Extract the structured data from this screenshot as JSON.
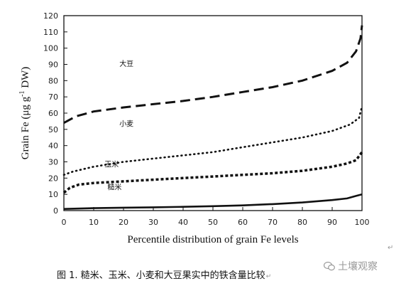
{
  "chart_data": {
    "type": "line",
    "xlabel": "Percentile distribution of grain Fe levels",
    "ylabel_prefix": "Grain Fe (μg g",
    "ylabel_sup": "-1",
    "ylabel_suffix": " DW)",
    "xlim": [
      0,
      100
    ],
    "ylim": [
      0,
      120
    ],
    "xticks": [
      "0",
      "10",
      "20",
      "30",
      "40",
      "50",
      "60",
      "70",
      "80",
      "90",
      "100"
    ],
    "yticks": [
      "0",
      "10",
      "20",
      "30",
      "40",
      "50",
      "60",
      "70",
      "80",
      "90",
      "100",
      "110",
      "120"
    ],
    "grid": false,
    "series": [
      {
        "name": "大豆",
        "style": "long-dash",
        "label_pos": [
          21,
          89
        ],
        "points": [
          [
            0,
            54
          ],
          [
            4,
            58
          ],
          [
            10,
            61
          ],
          [
            20,
            63.5
          ],
          [
            30,
            65.5
          ],
          [
            40,
            67.5
          ],
          [
            50,
            70
          ],
          [
            60,
            73
          ],
          [
            70,
            76
          ],
          [
            80,
            80
          ],
          [
            90,
            86
          ],
          [
            95,
            91
          ],
          [
            98,
            98
          ],
          [
            99.5,
            106
          ],
          [
            100,
            114
          ]
        ]
      },
      {
        "name": "小麦",
        "style": "dotted",
        "label_pos": [
          21,
          52
        ],
        "points": [
          [
            0,
            22
          ],
          [
            3,
            24
          ],
          [
            10,
            27
          ],
          [
            20,
            30
          ],
          [
            30,
            32
          ],
          [
            40,
            34
          ],
          [
            50,
            36
          ],
          [
            60,
            39
          ],
          [
            70,
            42
          ],
          [
            80,
            45
          ],
          [
            90,
            49
          ],
          [
            96,
            53
          ],
          [
            99,
            57
          ],
          [
            100,
            64
          ]
        ]
      },
      {
        "name": "玉米",
        "style": "short-dash",
        "label_pos": [
          16,
          27
        ],
        "points": [
          [
            0,
            11
          ],
          [
            2,
            14
          ],
          [
            5,
            16
          ],
          [
            10,
            17
          ],
          [
            20,
            18
          ],
          [
            30,
            19
          ],
          [
            40,
            20
          ],
          [
            50,
            21
          ],
          [
            60,
            22
          ],
          [
            70,
            23
          ],
          [
            80,
            24.5
          ],
          [
            90,
            27
          ],
          [
            95,
            29
          ],
          [
            98,
            31
          ],
          [
            100,
            36
          ]
        ]
      },
      {
        "name": "糙米",
        "style": "solid",
        "label_pos": [
          17,
          13
        ],
        "points": [
          [
            0,
            1
          ],
          [
            10,
            1.5
          ],
          [
            20,
            1.8
          ],
          [
            30,
            2
          ],
          [
            40,
            2.3
          ],
          [
            50,
            2.7
          ],
          [
            60,
            3.2
          ],
          [
            70,
            4
          ],
          [
            80,
            5
          ],
          [
            90,
            6.5
          ],
          [
            95,
            7.5
          ],
          [
            98,
            9
          ],
          [
            100,
            10
          ]
        ]
      }
    ]
  },
  "caption": "图 1. 糙米、玉米、小麦和大豆果实中的铁含量比较",
  "caption_mark": "↵",
  "paragraph_mark": "↵",
  "watermark": "土壤观察"
}
